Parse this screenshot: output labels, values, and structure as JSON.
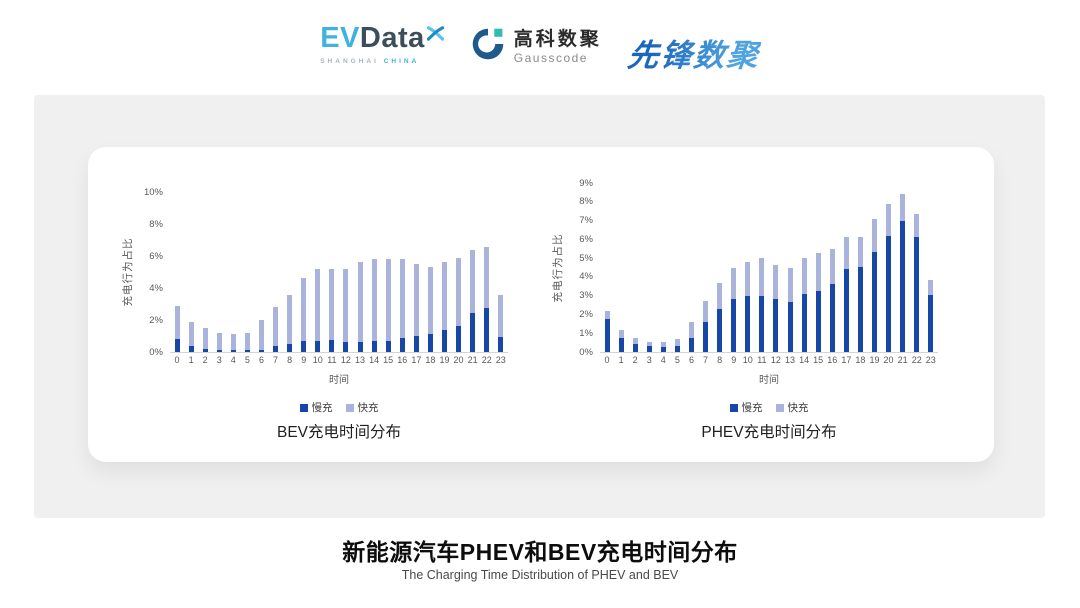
{
  "header": {
    "evdata_logo": {
      "ev": "EV",
      "data": "Data",
      "sub_gray": "SHANGHAI",
      "sub_blue": "CHINA"
    },
    "gausscode_logo": {
      "cn": "高科数聚",
      "en": "Gausscode"
    },
    "pioneer_logo": {
      "cn": "先锋数聚"
    }
  },
  "chart_data": [
    {
      "type": "bar",
      "stacked": true,
      "title": "BEV充电时间分布",
      "xlabel": "时间",
      "ylabel": "充电行为占比",
      "ylim": [
        0,
        10
      ],
      "ytick_step": 2,
      "ytick_suffix": "%",
      "grid": false,
      "legend_position": "bottom",
      "categories": [
        0,
        1,
        2,
        3,
        4,
        5,
        6,
        7,
        8,
        9,
        10,
        11,
        12,
        13,
        14,
        15,
        16,
        17,
        18,
        19,
        20,
        21,
        22,
        23
      ],
      "series": [
        {
          "name": "慢充",
          "color": "#1747A6",
          "values": [
            0.8,
            0.35,
            0.2,
            0.1,
            0.1,
            0.1,
            0.15,
            0.35,
            0.5,
            0.7,
            0.7,
            0.75,
            0.6,
            0.65,
            0.7,
            0.7,
            0.85,
            1.0,
            1.1,
            1.35,
            1.6,
            2.45,
            2.75,
            0.95
          ]
        },
        {
          "name": "快充",
          "color": "#A9B3DC",
          "values": [
            2.1,
            1.55,
            1.3,
            1.1,
            1.0,
            1.1,
            1.85,
            2.45,
            3.05,
            3.95,
            4.5,
            4.45,
            4.6,
            4.95,
            5.1,
            5.1,
            4.95,
            4.5,
            4.2,
            4.25,
            4.3,
            3.9,
            3.8,
            2.6
          ]
        }
      ]
    },
    {
      "type": "bar",
      "stacked": true,
      "title": "PHEV充电时间分布",
      "xlabel": "时间",
      "ylabel": "充电行为占比",
      "ylim": [
        0,
        9
      ],
      "ytick_step": 1,
      "ytick_suffix": "%",
      "grid": false,
      "legend_position": "bottom",
      "categories": [
        0,
        1,
        2,
        3,
        4,
        5,
        6,
        7,
        8,
        9,
        10,
        11,
        12,
        13,
        14,
        15,
        16,
        17,
        18,
        19,
        20,
        21,
        22,
        23
      ],
      "series": [
        {
          "name": "慢充",
          "color": "#1747A6",
          "values": [
            1.75,
            0.75,
            0.45,
            0.3,
            0.25,
            0.3,
            0.75,
            1.6,
            2.3,
            2.8,
            3.0,
            3.0,
            2.8,
            2.65,
            3.1,
            3.25,
            3.6,
            4.4,
            4.55,
            5.35,
            6.2,
            7.0,
            6.15,
            3.05
          ]
        },
        {
          "name": "快充",
          "color": "#A9B3DC",
          "values": [
            0.45,
            0.4,
            0.3,
            0.25,
            0.3,
            0.4,
            0.85,
            1.1,
            1.35,
            1.7,
            1.8,
            2.0,
            1.85,
            1.85,
            1.9,
            2.0,
            1.9,
            1.75,
            1.6,
            1.75,
            1.7,
            1.4,
            1.2,
            0.8
          ]
        }
      ]
    }
  ],
  "footer": {
    "title": "新能源汽车PHEV和BEV充电时间分布",
    "subtitle": "The Charging Time Distribution of PHEV and BEV"
  }
}
